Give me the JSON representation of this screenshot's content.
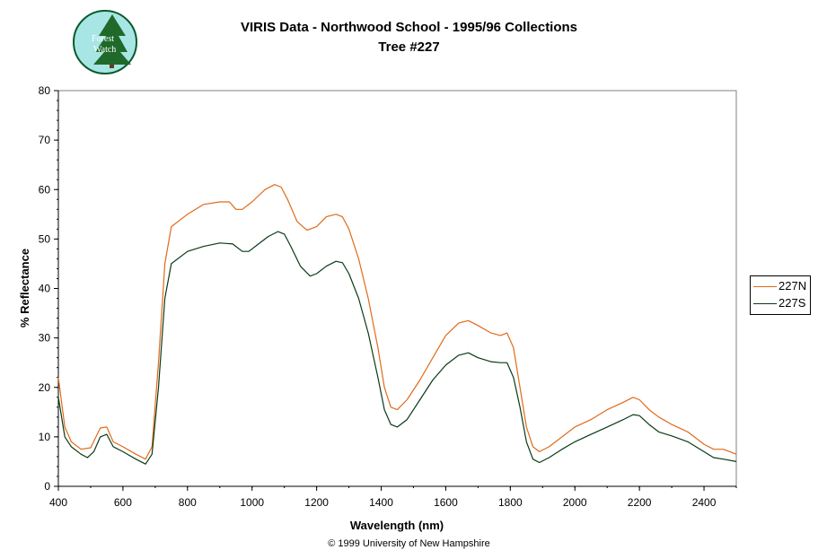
{
  "logo": {
    "text_line1": "Forest",
    "text_line2": "Watch"
  },
  "footer": "© 1999 University of New Hampshire",
  "chart_data": {
    "type": "line",
    "title": "VIRIS Data - Northwood School - 1995/96 Collections",
    "subtitle": "Tree #227",
    "xlabel": "Wavelength (nm)",
    "ylabel": "% Reflectance",
    "xlim": [
      400,
      2500
    ],
    "ylim": [
      0,
      80
    ],
    "xticks": [
      400,
      600,
      800,
      1000,
      1200,
      1400,
      1600,
      1800,
      2000,
      2200,
      2400
    ],
    "yticks": [
      0,
      10,
      20,
      30,
      40,
      50,
      60,
      70,
      80
    ],
    "grid": false,
    "legend_position": "right",
    "series": [
      {
        "name": "227N",
        "color": "#e06a1a",
        "points": [
          [
            400,
            22
          ],
          [
            420,
            12
          ],
          [
            440,
            9
          ],
          [
            470,
            7.5
          ],
          [
            500,
            7.8
          ],
          [
            530,
            11.8
          ],
          [
            550,
            12
          ],
          [
            570,
            9
          ],
          [
            600,
            8
          ],
          [
            640,
            6.5
          ],
          [
            670,
            5.5
          ],
          [
            690,
            8
          ],
          [
            710,
            25
          ],
          [
            730,
            45
          ],
          [
            750,
            52.5
          ],
          [
            800,
            55
          ],
          [
            850,
            57
          ],
          [
            900,
            57.5
          ],
          [
            930,
            57.5
          ],
          [
            950,
            56
          ],
          [
            970,
            56
          ],
          [
            1000,
            57.5
          ],
          [
            1040,
            60
          ],
          [
            1070,
            61
          ],
          [
            1090,
            60.5
          ],
          [
            1110,
            58
          ],
          [
            1140,
            53.5
          ],
          [
            1170,
            51.8
          ],
          [
            1200,
            52.5
          ],
          [
            1230,
            54.5
          ],
          [
            1260,
            55
          ],
          [
            1280,
            54.5
          ],
          [
            1300,
            52
          ],
          [
            1330,
            46
          ],
          [
            1360,
            38
          ],
          [
            1390,
            28
          ],
          [
            1410,
            20
          ],
          [
            1430,
            16
          ],
          [
            1450,
            15.5
          ],
          [
            1480,
            17.5
          ],
          [
            1520,
            21.5
          ],
          [
            1560,
            26
          ],
          [
            1600,
            30.5
          ],
          [
            1640,
            33
          ],
          [
            1670,
            33.5
          ],
          [
            1700,
            32.5
          ],
          [
            1740,
            31
          ],
          [
            1770,
            30.5
          ],
          [
            1790,
            31
          ],
          [
            1810,
            28
          ],
          [
            1830,
            20
          ],
          [
            1850,
            12
          ],
          [
            1870,
            8
          ],
          [
            1890,
            7
          ],
          [
            1920,
            8
          ],
          [
            1960,
            10
          ],
          [
            2000,
            12
          ],
          [
            2050,
            13.5
          ],
          [
            2100,
            15.5
          ],
          [
            2150,
            17
          ],
          [
            2180,
            18
          ],
          [
            2200,
            17.5
          ],
          [
            2230,
            15.5
          ],
          [
            2260,
            14
          ],
          [
            2300,
            12.5
          ],
          [
            2350,
            11
          ],
          [
            2400,
            8.5
          ],
          [
            2430,
            7.5
          ],
          [
            2460,
            7.5
          ],
          [
            2500,
            6.5
          ]
        ]
      },
      {
        "name": "227S",
        "color": "#0a3a16",
        "points": [
          [
            400,
            18
          ],
          [
            420,
            10
          ],
          [
            440,
            8
          ],
          [
            470,
            6.5
          ],
          [
            490,
            5.8
          ],
          [
            510,
            7
          ],
          [
            530,
            10
          ],
          [
            550,
            10.5
          ],
          [
            570,
            8
          ],
          [
            600,
            7
          ],
          [
            640,
            5.5
          ],
          [
            670,
            4.5
          ],
          [
            690,
            6.5
          ],
          [
            710,
            20
          ],
          [
            730,
            38
          ],
          [
            750,
            45
          ],
          [
            800,
            47.5
          ],
          [
            850,
            48.5
          ],
          [
            900,
            49.2
          ],
          [
            940,
            49
          ],
          [
            970,
            47.5
          ],
          [
            990,
            47.5
          ],
          [
            1020,
            49
          ],
          [
            1050,
            50.5
          ],
          [
            1080,
            51.5
          ],
          [
            1100,
            51
          ],
          [
            1120,
            48.5
          ],
          [
            1150,
            44.5
          ],
          [
            1180,
            42.5
          ],
          [
            1200,
            43
          ],
          [
            1230,
            44.5
          ],
          [
            1260,
            45.5
          ],
          [
            1280,
            45.2
          ],
          [
            1300,
            43
          ],
          [
            1330,
            38
          ],
          [
            1360,
            31
          ],
          [
            1390,
            22
          ],
          [
            1410,
            15.5
          ],
          [
            1430,
            12.5
          ],
          [
            1450,
            12
          ],
          [
            1480,
            13.5
          ],
          [
            1520,
            17.5
          ],
          [
            1560,
            21.5
          ],
          [
            1600,
            24.5
          ],
          [
            1640,
            26.5
          ],
          [
            1670,
            27
          ],
          [
            1700,
            26
          ],
          [
            1740,
            25.2
          ],
          [
            1770,
            25
          ],
          [
            1790,
            25
          ],
          [
            1810,
            22
          ],
          [
            1830,
            16
          ],
          [
            1850,
            9
          ],
          [
            1870,
            5.5
          ],
          [
            1890,
            4.8
          ],
          [
            1920,
            5.8
          ],
          [
            1960,
            7.5
          ],
          [
            2000,
            9
          ],
          [
            2050,
            10.5
          ],
          [
            2100,
            12
          ],
          [
            2150,
            13.5
          ],
          [
            2180,
            14.5
          ],
          [
            2200,
            14.3
          ],
          [
            2230,
            12.5
          ],
          [
            2260,
            11
          ],
          [
            2300,
            10.2
          ],
          [
            2350,
            9
          ],
          [
            2400,
            7
          ],
          [
            2430,
            5.8
          ],
          [
            2460,
            5.5
          ],
          [
            2500,
            5
          ]
        ]
      }
    ]
  }
}
